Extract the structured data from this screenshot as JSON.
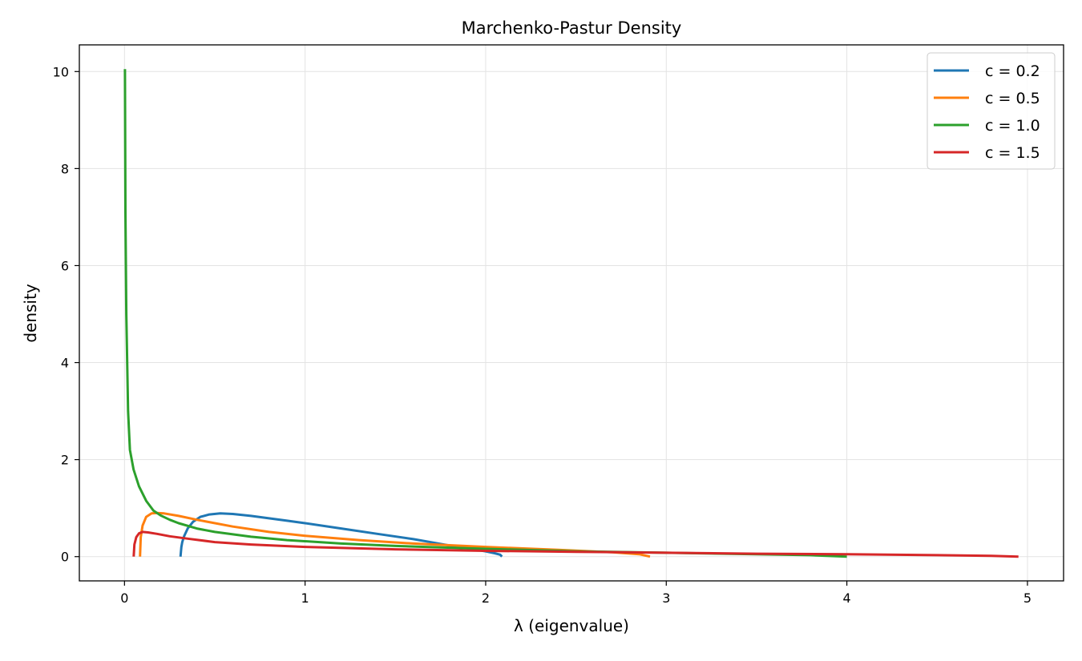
{
  "chart_data": {
    "type": "line",
    "title": "Marchenko-Pastur Density",
    "xlabel": "λ (eigenvalue)",
    "ylabel": "density",
    "xlim": [
      -0.25,
      5.2
    ],
    "ylim": [
      -0.5,
      10.55
    ],
    "xticks": [
      0,
      1,
      2,
      3,
      4,
      5
    ],
    "yticks": [
      0,
      2,
      4,
      6,
      8,
      10
    ],
    "grid": true,
    "legend_position": "top-right",
    "series": [
      {
        "name": "c = 0.2",
        "color": "#1f77b4",
        "x": [
          0.31,
          0.315,
          0.32,
          0.33,
          0.35,
          0.38,
          0.42,
          0.47,
          0.53,
          0.6,
          0.7,
          0.8,
          0.9,
          1.0,
          1.2,
          1.4,
          1.6,
          1.8,
          1.9,
          2.0,
          2.05,
          2.08,
          2.09
        ],
        "y": [
          0.0,
          0.2,
          0.3,
          0.42,
          0.58,
          0.72,
          0.82,
          0.87,
          0.89,
          0.88,
          0.84,
          0.79,
          0.74,
          0.69,
          0.58,
          0.47,
          0.36,
          0.23,
          0.17,
          0.11,
          0.07,
          0.04,
          0.0
        ]
      },
      {
        "name": "c = 0.5",
        "color": "#ff7f0e",
        "x": [
          0.086,
          0.09,
          0.1,
          0.12,
          0.15,
          0.18,
          0.22,
          0.3,
          0.4,
          0.6,
          0.8,
          1.0,
          1.3,
          1.6,
          2.0,
          2.4,
          2.7,
          2.85,
          2.91
        ],
        "y": [
          0.0,
          0.4,
          0.64,
          0.82,
          0.89,
          0.9,
          0.89,
          0.84,
          0.76,
          0.62,
          0.51,
          0.43,
          0.34,
          0.27,
          0.2,
          0.14,
          0.09,
          0.05,
          0.0
        ]
      },
      {
        "name": "c = 1.0",
        "color": "#2ca02c",
        "x": [
          0.0025,
          0.005,
          0.01,
          0.02,
          0.03,
          0.05,
          0.08,
          0.12,
          0.16,
          0.2,
          0.25,
          0.3,
          0.4,
          0.5,
          0.7,
          0.9,
          1.2,
          1.5,
          2.0,
          2.5,
          3.0,
          3.5,
          3.8,
          4.0
        ],
        "y": [
          10.05,
          7.1,
          5.0,
          3.0,
          2.2,
          1.8,
          1.45,
          1.15,
          0.95,
          0.85,
          0.76,
          0.69,
          0.58,
          0.51,
          0.41,
          0.34,
          0.27,
          0.22,
          0.16,
          0.11,
          0.08,
          0.05,
          0.03,
          0.0
        ]
      },
      {
        "name": "c = 1.5",
        "color": "#d62728",
        "x": [
          0.051,
          0.055,
          0.065,
          0.08,
          0.1,
          0.13,
          0.18,
          0.25,
          0.35,
          0.5,
          0.7,
          1.0,
          1.5,
          2.0,
          2.5,
          3.0,
          3.5,
          4.0,
          4.5,
          4.8,
          4.95
        ],
        "y": [
          0.0,
          0.25,
          0.4,
          0.48,
          0.51,
          0.5,
          0.47,
          0.42,
          0.37,
          0.3,
          0.25,
          0.2,
          0.15,
          0.12,
          0.1,
          0.08,
          0.06,
          0.05,
          0.03,
          0.015,
          0.0
        ]
      }
    ]
  }
}
